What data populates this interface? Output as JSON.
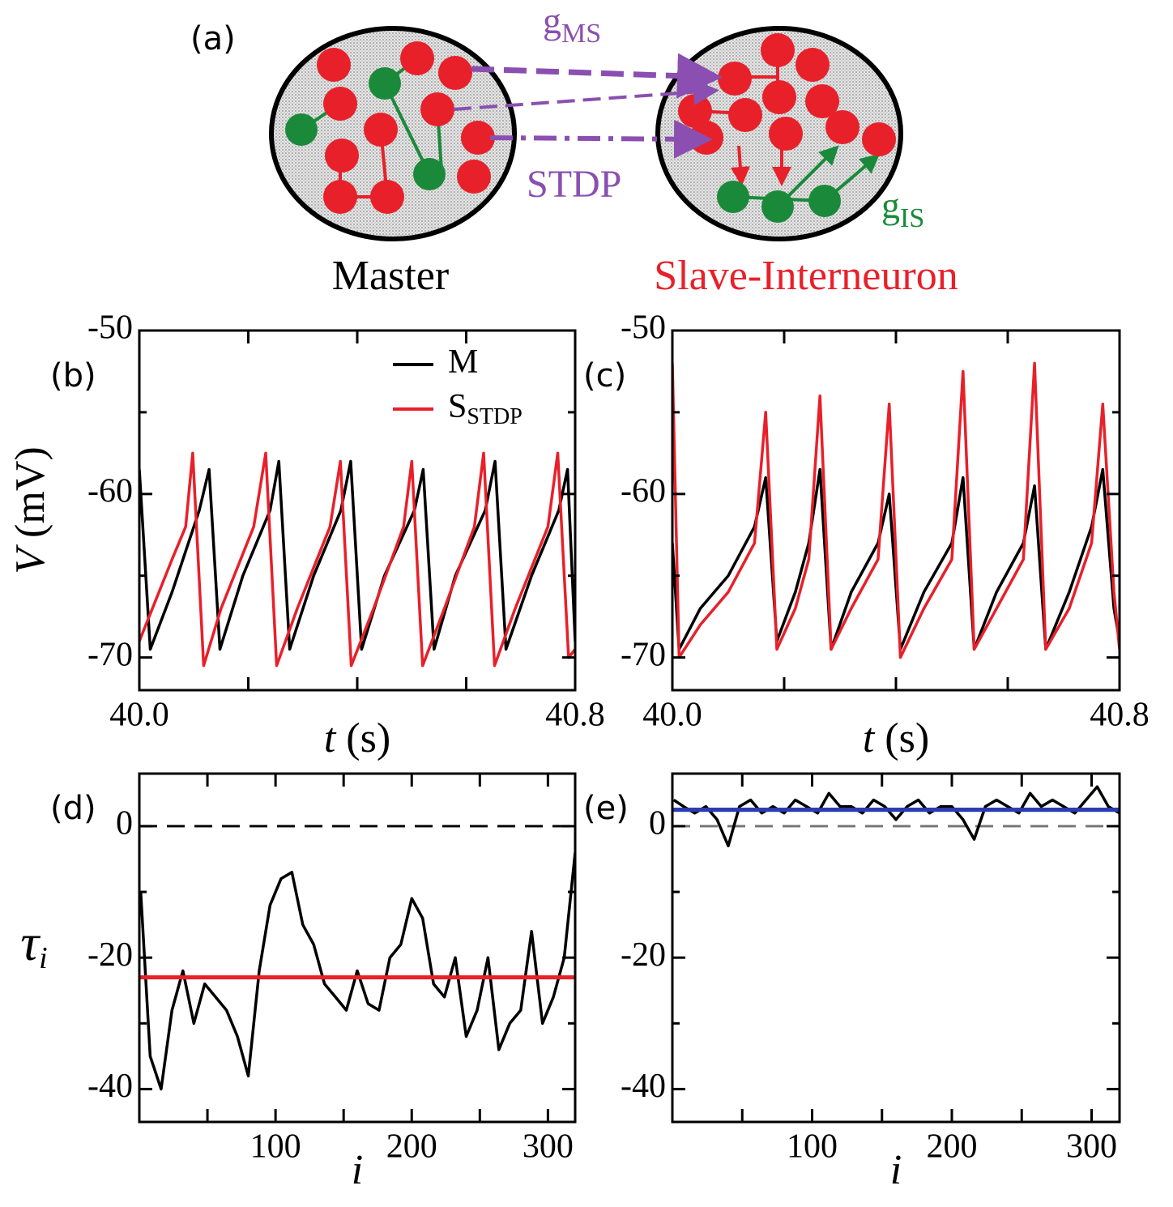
{
  "diagram": {
    "panel_label": "(a)",
    "coupling_label": {
      "text": "g",
      "sub": "MS"
    },
    "stdp_label": "STDP",
    "inhibition_label": {
      "text": "g",
      "sub": "IS"
    },
    "master_label": "Master",
    "slave_label": "Slave-Interneuron"
  },
  "chart_data": [
    {
      "type": "line",
      "panel_label": "(b)",
      "xlabel": {
        "var": "t",
        "unit": "(s)"
      },
      "ylabel": {
        "var": "V",
        "unit": "(mV)"
      },
      "xlim": [
        40.0,
        40.8
      ],
      "ylim": [
        -72,
        -50
      ],
      "xticks": [
        {
          "value": 40.0,
          "label": "40.0"
        },
        {
          "value": 40.8,
          "label": "40.8"
        }
      ],
      "xminor": [
        40.2,
        40.4,
        40.6
      ],
      "yticks": [
        -50,
        -60,
        -70
      ],
      "yminor": [
        -55,
        -65
      ],
      "legend": "upper right",
      "series": [
        {
          "name": "M",
          "color": "#000000",
          "x": [
            40.0,
            40.02,
            40.06,
            40.11,
            40.128,
            40.148,
            40.19,
            40.24,
            40.256,
            40.276,
            40.32,
            40.37,
            40.388,
            40.408,
            40.45,
            40.505,
            40.521,
            40.541,
            40.58,
            40.635,
            40.653,
            40.673,
            40.72,
            40.77,
            40.786,
            40.8
          ],
          "values": [
            -58.5,
            -69.5,
            -66,
            -61,
            -58.5,
            -69.5,
            -65,
            -61,
            -58,
            -69.5,
            -65,
            -61,
            -58,
            -69.5,
            -65,
            -61,
            -58.5,
            -69.5,
            -65,
            -61,
            -58,
            -69.5,
            -65,
            -61,
            -58.5,
            -69
          ]
        },
        {
          "name": "S",
          "name_sub": "STDP",
          "color": "#e8202a",
          "x": [
            40.0,
            40.06,
            40.085,
            40.098,
            40.118,
            40.15,
            40.21,
            40.232,
            40.252,
            40.29,
            40.35,
            40.369,
            40.389,
            40.43,
            40.485,
            40.5,
            40.52,
            40.56,
            40.615,
            40.632,
            40.652,
            40.69,
            40.75,
            40.768,
            40.788,
            40.8
          ],
          "values": [
            -69,
            -64,
            -62,
            -57.5,
            -70.5,
            -67,
            -62,
            -57.5,
            -70.5,
            -67,
            -62,
            -58,
            -70.5,
            -67,
            -62,
            -58,
            -70.5,
            -67,
            -62,
            -57.5,
            -70.5,
            -67,
            -62,
            -57.5,
            -70,
            -69.5
          ]
        }
      ]
    },
    {
      "type": "line",
      "panel_label": "(c)",
      "xlabel": {
        "var": "t",
        "unit": "(s)"
      },
      "xlim": [
        40.0,
        40.8
      ],
      "ylim": [
        -72,
        -50
      ],
      "xticks": [
        {
          "value": 40.0,
          "label": "40.0"
        },
        {
          "value": 40.8,
          "label": "40.8"
        }
      ],
      "xminor": [
        40.2,
        40.4,
        40.6
      ],
      "yticks": [
        -50,
        -60,
        -70
      ],
      "yminor": [
        -55,
        -65
      ],
      "series": [
        {
          "color": "#000000",
          "x": [
            40.0,
            40.012,
            40.05,
            40.1,
            40.147,
            40.167,
            40.187,
            40.22,
            40.244,
            40.264,
            40.284,
            40.32,
            40.368,
            40.388,
            40.408,
            40.45,
            40.5,
            40.52,
            40.54,
            40.58,
            40.628,
            40.648,
            40.668,
            40.71,
            40.75,
            40.77,
            40.79,
            40.8
          ],
          "values": [
            -63,
            -69.5,
            -67,
            -65,
            -62,
            -59,
            -69,
            -66,
            -63,
            -58.5,
            -69.5,
            -66,
            -63,
            -60,
            -69.5,
            -66,
            -63,
            -59,
            -69.5,
            -66,
            -63,
            -59.5,
            -69.5,
            -66,
            -62,
            -58.5,
            -67,
            -69
          ]
        },
        {
          "color": "#e8202a",
          "x": [
            40.0,
            40.012,
            40.05,
            40.1,
            40.147,
            40.167,
            40.187,
            40.22,
            40.244,
            40.264,
            40.284,
            40.32,
            40.368,
            40.388,
            40.408,
            40.45,
            40.5,
            40.52,
            40.54,
            40.58,
            40.628,
            40.648,
            40.668,
            40.71,
            40.75,
            40.77,
            40.79,
            40.8
          ],
          "values": [
            -52,
            -70,
            -68,
            -66,
            -63,
            -55,
            -69.5,
            -67,
            -64,
            -54,
            -69.5,
            -67,
            -64,
            -54.5,
            -70,
            -67,
            -64,
            -52.5,
            -69.5,
            -67,
            -64,
            -52,
            -69.5,
            -67,
            -63,
            -54.5,
            -66,
            -69.5
          ]
        }
      ]
    },
    {
      "type": "line",
      "panel_label": "(d)",
      "xlabel": {
        "var": "i"
      },
      "ylabel": {
        "var": "τ",
        "sub": "i"
      },
      "xlim": [
        0,
        320
      ],
      "ylim": [
        -45,
        8
      ],
      "xticks": [
        100,
        200,
        300
      ],
      "xminor": [
        50,
        150,
        250
      ],
      "yticks": [
        0,
        -20,
        -40
      ],
      "yminor": [
        -10,
        -30
      ],
      "reference_lines": [
        {
          "value": 0,
          "color": "#000000",
          "dashed": true
        },
        {
          "value": -23,
          "color": "#e8202a"
        }
      ],
      "series": [
        {
          "color": "#000000",
          "x": [
            1,
            8,
            16,
            24,
            32,
            40,
            48,
            56,
            64,
            72,
            80,
            88,
            96,
            104,
            112,
            120,
            128,
            136,
            144,
            152,
            160,
            168,
            176,
            184,
            192,
            200,
            208,
            216,
            224,
            232,
            240,
            248,
            256,
            264,
            272,
            280,
            288,
            296,
            304,
            312,
            320
          ],
          "values": [
            -10,
            -35,
            -40,
            -28,
            -22,
            -30,
            -24,
            -26,
            -28,
            -32,
            -38,
            -22,
            -12,
            -8,
            -7,
            -15,
            -18,
            -24,
            -26,
            -28,
            -22,
            -27,
            -28,
            -20,
            -18,
            -11,
            -14,
            -24,
            -26,
            -20,
            -32,
            -28,
            -20,
            -34,
            -30,
            -28,
            -16,
            -30,
            -26,
            -20,
            -4
          ]
        }
      ]
    },
    {
      "type": "line",
      "panel_label": "(e)",
      "xlabel": {
        "var": "i"
      },
      "xlim": [
        0,
        320
      ],
      "ylim": [
        -45,
        8
      ],
      "xticks": [
        100,
        200,
        300
      ],
      "xminor": [
        50,
        150,
        250
      ],
      "yticks": [
        0,
        -20,
        -40
      ],
      "yminor": [
        -10,
        -30
      ],
      "reference_lines": [
        {
          "value": 0,
          "color": "#777777",
          "dashed": true
        },
        {
          "value": 2.5,
          "color": "#2a3cb0"
        }
      ],
      "series": [
        {
          "color": "#000000",
          "x": [
            1,
            8,
            16,
            24,
            32,
            40,
            48,
            56,
            64,
            72,
            80,
            88,
            96,
            104,
            112,
            120,
            128,
            136,
            144,
            152,
            160,
            168,
            176,
            184,
            192,
            200,
            208,
            216,
            224,
            232,
            240,
            248,
            256,
            264,
            272,
            280,
            288,
            296,
            304,
            312,
            320
          ],
          "values": [
            4,
            3,
            2,
            3,
            1,
            -3,
            3,
            4,
            2,
            3,
            2,
            4,
            3,
            2,
            5,
            3,
            3,
            2,
            4,
            3,
            1,
            3,
            4,
            2,
            3,
            3,
            1,
            -2,
            3,
            4,
            3,
            2,
            5,
            3,
            4,
            3,
            2,
            4,
            6,
            3,
            2
          ]
        }
      ]
    }
  ]
}
